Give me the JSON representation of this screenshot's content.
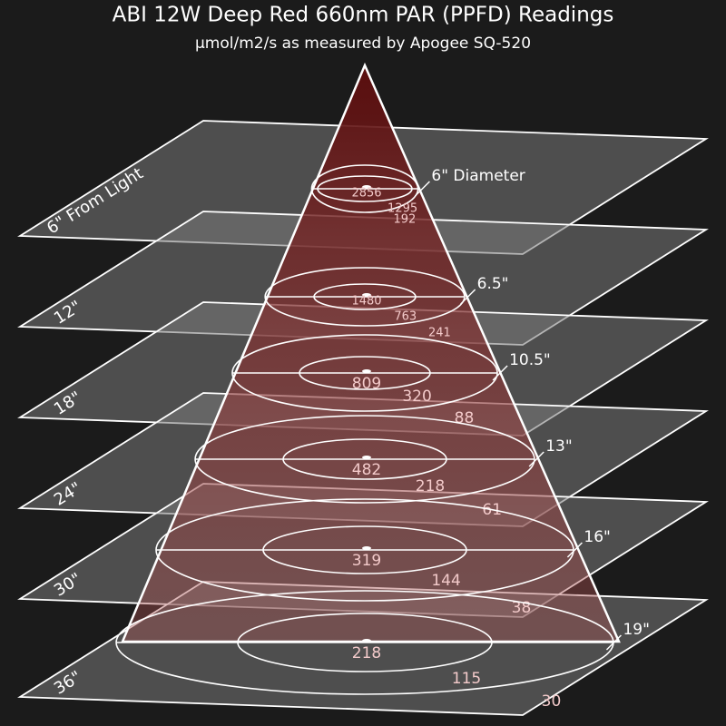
{
  "title": "ABI 12W Deep Red 660nm PAR (PPFD) Readings",
  "subtitle": "µmol/m2/s as measured by Apogee SQ-520",
  "layers": [
    {
      "distance": "6\" From Light",
      "diameter": "6\" Diameter",
      "center": 2856,
      "middle": 1295,
      "outer": 192
    },
    {
      "distance": "12\"",
      "diameter": "6.5\"",
      "center": 1480,
      "middle": 763,
      "outer": 241
    },
    {
      "distance": "18\"",
      "diameter": "10.5\"",
      "center": 809,
      "middle": 320,
      "outer": 88
    },
    {
      "distance": "24\"",
      "diameter": "13\"",
      "center": 482,
      "middle": 218,
      "outer": 61
    },
    {
      "distance": "30\"",
      "diameter": "16\"",
      "center": 319,
      "middle": 144,
      "outer": 38
    },
    {
      "distance": "36\"",
      "diameter": "19\"",
      "center": 218,
      "middle": 115,
      "outer": 30
    }
  ]
}
